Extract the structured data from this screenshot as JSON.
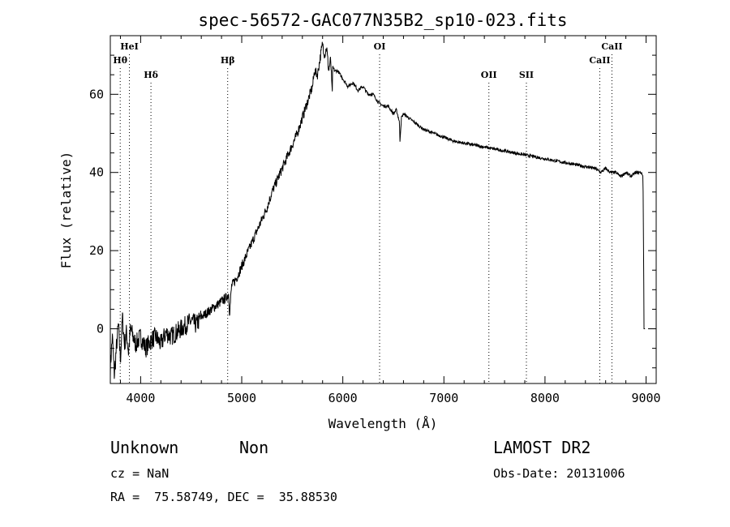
{
  "chart_data": {
    "type": "line",
    "title": "spec-56572-GAC077N35B2_sp10-023.fits",
    "xlabel": "Wavelength (Å)",
    "ylabel": "Flux (relative)",
    "xlim": [
      3700,
      9100
    ],
    "ylim": [
      -14,
      75
    ],
    "xticks": [
      4000,
      5000,
      6000,
      7000,
      8000,
      9000
    ],
    "yticks": [
      0,
      20,
      40,
      60
    ],
    "grid": false,
    "spectrum": {
      "x": [
        3700,
        3720,
        3740,
        3760,
        3780,
        3800,
        3820,
        3840,
        3860,
        3880,
        3900,
        3950,
        4000,
        4050,
        4100,
        4150,
        4200,
        4250,
        4300,
        4350,
        4400,
        4450,
        4500,
        4550,
        4600,
        4650,
        4700,
        4750,
        4800,
        4850,
        4870,
        4880,
        4900,
        4950,
        5000,
        5050,
        5100,
        5150,
        5200,
        5250,
        5300,
        5350,
        5400,
        5450,
        5500,
        5550,
        5600,
        5650,
        5700,
        5720,
        5750,
        5780,
        5800,
        5820,
        5840,
        5860,
        5880,
        5895,
        5900,
        5920,
        5950,
        6000,
        6050,
        6100,
        6150,
        6200,
        6250,
        6300,
        6350,
        6400,
        6450,
        6500,
        6530,
        6550,
        6560,
        6565,
        6580,
        6600,
        6650,
        6700,
        6750,
        6800,
        6900,
        7000,
        7100,
        7200,
        7300,
        7400,
        7500,
        7600,
        7700,
        7800,
        7900,
        8000,
        8100,
        8200,
        8300,
        8400,
        8500,
        8550,
        8600,
        8650,
        8700,
        8750,
        8800,
        8850,
        8900,
        8950,
        8970,
        8980,
        8985,
        8990
      ],
      "y": [
        -10,
        -2,
        -12,
        -5,
        1,
        -8,
        3,
        -4,
        -1,
        -6,
        0,
        -4,
        -2,
        -5,
        -3,
        -2,
        -4,
        -1,
        -2,
        -1,
        0,
        1,
        2,
        1,
        3,
        4,
        5,
        6,
        7,
        8,
        9,
        4,
        11,
        13,
        16,
        19,
        22,
        25,
        28,
        31,
        35,
        38,
        41,
        44,
        47,
        50,
        54,
        58,
        62,
        66,
        65,
        70,
        73,
        70,
        72,
        66,
        69,
        60,
        67,
        66,
        66,
        64,
        62,
        63,
        61,
        62,
        60,
        60,
        58,
        57,
        57,
        55,
        56,
        54,
        53,
        48,
        54,
        55,
        54,
        53,
        52,
        51,
        50,
        49,
        48,
        47.5,
        47,
        46.5,
        46,
        45.5,
        45,
        44.5,
        44,
        43.5,
        43,
        42.5,
        42,
        41.5,
        41,
        40,
        41,
        40,
        40,
        39,
        40,
        39,
        40,
        40,
        39,
        0,
        0,
        0
      ]
    },
    "lines": [
      {
        "label": "HeI",
        "x": 3889
      },
      {
        "label": "Hθ",
        "x": 3798
      },
      {
        "label": "Hδ",
        "x": 4102
      },
      {
        "label": "Hβ",
        "x": 4861
      },
      {
        "label": "OI",
        "x": 6364
      },
      {
        "label": "OII",
        "x": 7445
      },
      {
        "label": "SII",
        "x": 7816
      },
      {
        "label": "CaII",
        "x": 8542
      },
      {
        "label": "CaII",
        "x": 8662
      }
    ]
  },
  "info": {
    "class": "Unknown",
    "subclass": "Non",
    "survey": "LAMOST DR2",
    "cz": "cz = NaN",
    "obs_date": "Obs-Date: 20131006",
    "radec": "RA =  75.58749, DEC =  35.88530"
  }
}
